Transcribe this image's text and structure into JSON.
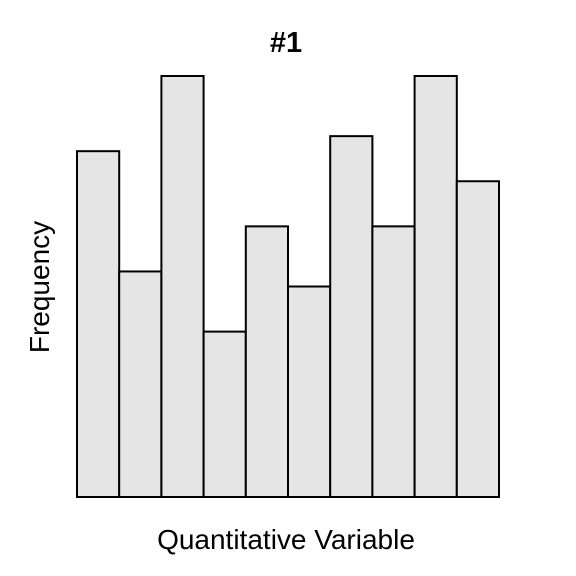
{
  "chart_data": {
    "type": "bar",
    "title": "#1",
    "xlabel": "Quantitative Variable",
    "ylabel": "Frequency",
    "values": [
      23,
      15,
      28,
      11,
      18,
      14,
      24,
      18,
      28,
      21
    ],
    "ylim": [
      0,
      28
    ],
    "grid": false,
    "colors": {
      "bar_fill": "#e5e5e5",
      "bar_stroke": "#000000"
    }
  }
}
